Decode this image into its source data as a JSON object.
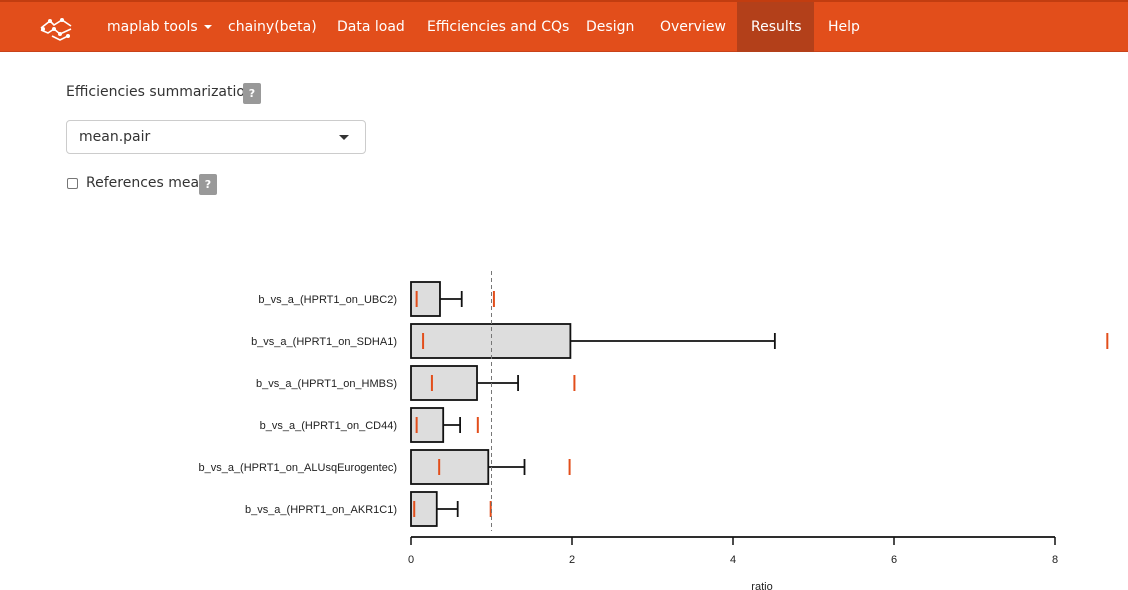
{
  "navbar": {
    "items": [
      {
        "label": "maplab tools",
        "dropdown": true
      },
      {
        "label": "chainy(beta)"
      },
      {
        "label": "Data load"
      },
      {
        "label": "Efficiencies and CQs"
      },
      {
        "label": "Design"
      },
      {
        "label": "Overview"
      },
      {
        "label": "Results",
        "active": true
      },
      {
        "label": "Help"
      }
    ],
    "background_color": "#e24e1b",
    "active_color": "#b3401a"
  },
  "form": {
    "efficiencies_label": "Efficiencies summarization:",
    "help_glyph": "?",
    "select_value": "mean.pair",
    "references_mean_label": "References mean",
    "references_mean_checked": false
  },
  "chart_data": {
    "type": "bar",
    "orientation": "horizontal",
    "xlabel": "ratio",
    "xlim": [
      0,
      8
    ],
    "xticks": [
      0,
      2,
      4,
      6,
      8
    ],
    "reference_line": 1,
    "bar_fill": "#dddddd",
    "marker_color": "#e24e1b",
    "categories": [
      "b_vs_a_(HPRT1_on_UBC2)",
      "b_vs_a_(HPRT1_on_SDHA1)",
      "b_vs_a_(HPRT1_on_HMBS)",
      "b_vs_a_(HPRT1_on_CD44)",
      "b_vs_a_(HPRT1_on_ALUsqEurogentec)",
      "b_vs_a_(HPRT1_on_AKR1C1)"
    ],
    "values": [
      0.36,
      1.98,
      0.82,
      0.4,
      0.96,
      0.32
    ],
    "error_upper": [
      0.63,
      4.52,
      1.33,
      0.61,
      1.41,
      0.58
    ],
    "markers": [
      [
        0.07,
        1.03
      ],
      [
        0.15,
        8.65
      ],
      [
        0.26,
        2.03
      ],
      [
        0.07,
        0.83
      ],
      [
        0.35,
        1.97
      ],
      [
        0.04,
        0.99
      ]
    ]
  }
}
